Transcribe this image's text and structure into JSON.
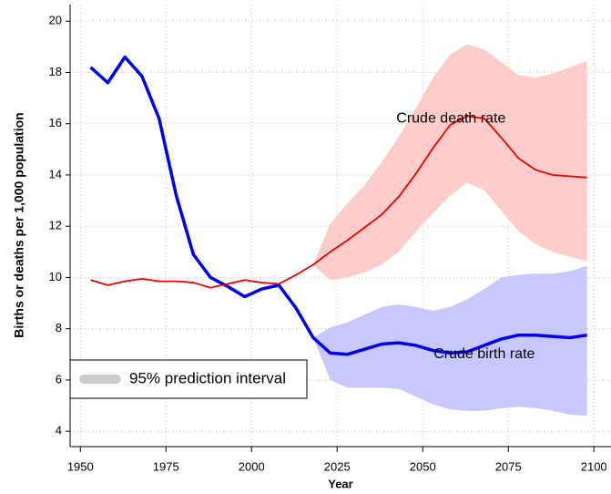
{
  "chart_data": {
    "type": "line",
    "xlabel": "Year",
    "ylabel": "Births or deaths per 1,000 population",
    "x": [
      1953,
      1958,
      1963,
      1968,
      1973,
      1978,
      1983,
      1988,
      1993,
      1998,
      2003,
      2008,
      2013,
      2018,
      2023,
      2028,
      2033,
      2038,
      2043,
      2048,
      2053,
      2058,
      2063,
      2068,
      2073,
      2078,
      2083,
      2088,
      2093,
      2098
    ],
    "series": [
      {
        "color": "#0000ee",
        "width": 3.5,
        "values": [
          18.2,
          17.6,
          18.6,
          17.85,
          16.2,
          13.2,
          10.9,
          10.0,
          9.65,
          9.25,
          9.55,
          9.7,
          8.8,
          7.65,
          7.05,
          7.0,
          7.2,
          7.4,
          7.45,
          7.35,
          7.15,
          7.05,
          7.1,
          7.35,
          7.6,
          7.75,
          7.75,
          7.7,
          7.65,
          7.75
        ]
      },
      {
        "color": "#ee0000",
        "width": 1.8,
        "values": [
          9.9,
          9.7,
          9.85,
          9.95,
          9.85,
          9.85,
          9.8,
          9.6,
          9.75,
          9.9,
          9.8,
          9.75,
          10.1,
          10.5,
          11.0,
          11.45,
          11.95,
          12.45,
          13.15,
          14.05,
          15.05,
          15.95,
          16.3,
          16.2,
          15.45,
          14.65,
          14.2,
          14.0,
          13.95,
          13.9
        ]
      }
    ],
    "bands": [
      {
        "color": "#c8c8ff",
        "x": [
          2018,
          2023,
          2028,
          2033,
          2038,
          2043,
          2048,
          2053,
          2058,
          2063,
          2068,
          2073,
          2078,
          2083,
          2088,
          2093,
          2098
        ],
        "lower": [
          7.65,
          6.0,
          5.7,
          5.7,
          5.7,
          5.65,
          5.35,
          5.05,
          4.85,
          4.8,
          4.8,
          4.9,
          4.95,
          4.9,
          4.8,
          4.65,
          4.6
        ],
        "upper": [
          7.65,
          8.05,
          8.25,
          8.55,
          8.85,
          8.95,
          8.85,
          8.7,
          8.85,
          9.15,
          9.55,
          10.0,
          10.1,
          10.15,
          10.15,
          10.25,
          10.45
        ]
      },
      {
        "color": "#ffcccc",
        "x": [
          2018,
          2023,
          2028,
          2033,
          2038,
          2043,
          2048,
          2053,
          2058,
          2063,
          2068,
          2073,
          2078,
          2083,
          2088,
          2093,
          2098
        ],
        "lower": [
          10.5,
          9.9,
          10.0,
          10.2,
          10.5,
          11.0,
          11.8,
          12.5,
          13.2,
          13.7,
          13.4,
          12.6,
          11.8,
          11.3,
          11.0,
          10.8,
          10.65
        ],
        "upper": [
          10.5,
          12.1,
          12.9,
          13.6,
          14.5,
          15.5,
          16.6,
          17.8,
          18.7,
          19.1,
          18.9,
          18.4,
          17.9,
          17.8,
          17.95,
          18.2,
          18.45
        ]
      }
    ],
    "annotations": [
      {
        "text": "Crude death rate",
        "x": 2042.3,
        "y": 16.2
      },
      {
        "text": "Crude birth rate",
        "x": 2053.2,
        "y": 7.0
      }
    ],
    "legend": {
      "label": "95% prediction interval",
      "color": "#cccccc",
      "position": "lower left"
    },
    "xlim": [
      1947,
      2105
    ],
    "ylim": [
      3.4,
      20.65
    ],
    "xticks": [
      1950,
      1975,
      2000,
      2025,
      2050,
      2075,
      2100
    ],
    "yticks": [
      4,
      6,
      8,
      10,
      12,
      14,
      16,
      18,
      20
    ],
    "grid": true
  }
}
